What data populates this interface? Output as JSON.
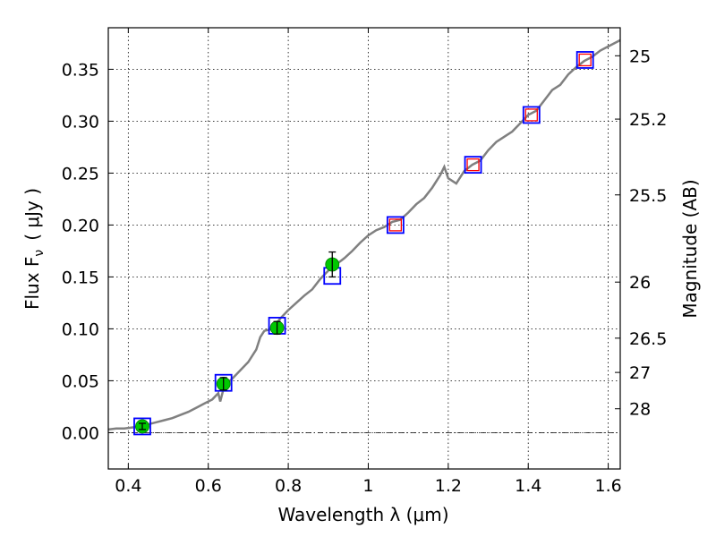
{
  "chart_data": {
    "type": "scatter",
    "xlabel": "Wavelength  λ (μm)",
    "ylabel": "Flux  F",
    "ylabel_sub": "ν",
    "ylabel_unit": "( μJy )",
    "y2label": "Magnitude (AB)",
    "xlim": [
      0.35,
      1.63
    ],
    "ylim": [
      -0.035,
      0.39
    ],
    "grid": true,
    "x_ticks": [
      0.4,
      0.6,
      0.8,
      1.0,
      1.2,
      1.4,
      1.6
    ],
    "x_tick_labels": [
      "0.4",
      "0.6",
      "0.8",
      "1",
      "1.2",
      "1.4",
      "1.6"
    ],
    "y_ticks": [
      0.0,
      0.05,
      0.1,
      0.15,
      0.2,
      0.25,
      0.3,
      0.35
    ],
    "y_tick_labels": [
      "0.00",
      "0.05",
      "0.10",
      "0.15",
      "0.20",
      "0.25",
      "0.30",
      "0.35"
    ],
    "y2_ticks": [
      {
        "label": "25",
        "flux": 0.363
      },
      {
        "label": "25.2",
        "flux": 0.302
      },
      {
        "label": "25.5",
        "flux": 0.229
      },
      {
        "label": "26",
        "flux": 0.145
      },
      {
        "label": "26.5",
        "flux": 0.091
      },
      {
        "label": "27",
        "flux": 0.058
      },
      {
        "label": "28",
        "flux": 0.023
      }
    ],
    "series": [
      {
        "kind": "line",
        "color": "#808080",
        "x": [
          0.35,
          0.37,
          0.39,
          0.41,
          0.43,
          0.45,
          0.47,
          0.49,
          0.51,
          0.53,
          0.55,
          0.57,
          0.59,
          0.61,
          0.625,
          0.63,
          0.64,
          0.66,
          0.68,
          0.7,
          0.72,
          0.73,
          0.74,
          0.76,
          0.78,
          0.8,
          0.82,
          0.84,
          0.86,
          0.88,
          0.9,
          0.92,
          0.94,
          0.96,
          0.98,
          1.0,
          1.02,
          1.04,
          1.06,
          1.08,
          1.1,
          1.12,
          1.14,
          1.16,
          1.18,
          1.19,
          1.2,
          1.22,
          1.24,
          1.26,
          1.28,
          1.3,
          1.32,
          1.34,
          1.36,
          1.38,
          1.4,
          1.42,
          1.44,
          1.46,
          1.48,
          1.5,
          1.52,
          1.54,
          1.56,
          1.58,
          1.6,
          1.63
        ],
        "y": [
          0.003,
          0.004,
          0.004,
          0.005,
          0.006,
          0.008,
          0.01,
          0.012,
          0.014,
          0.017,
          0.02,
          0.024,
          0.028,
          0.032,
          0.038,
          0.03,
          0.045,
          0.052,
          0.06,
          0.068,
          0.08,
          0.092,
          0.098,
          0.1,
          0.11,
          0.118,
          0.125,
          0.132,
          0.138,
          0.148,
          0.156,
          0.162,
          0.168,
          0.175,
          0.183,
          0.19,
          0.195,
          0.198,
          0.203,
          0.205,
          0.212,
          0.22,
          0.226,
          0.236,
          0.248,
          0.256,
          0.245,
          0.24,
          0.252,
          0.258,
          0.262,
          0.272,
          0.28,
          0.285,
          0.29,
          0.298,
          0.306,
          0.31,
          0.32,
          0.33,
          0.335,
          0.345,
          0.352,
          0.358,
          0.362,
          0.368,
          0.372,
          0.378
        ]
      },
      {
        "kind": "open-square",
        "color": "#0000ff",
        "x": [
          0.435,
          0.638,
          0.772,
          0.91,
          1.068,
          1.262,
          1.408,
          1.542
        ],
        "y": [
          0.006,
          0.048,
          0.103,
          0.151,
          0.2,
          0.258,
          0.306,
          0.359
        ]
      },
      {
        "kind": "open-square",
        "color": "#ff0000",
        "x": [
          1.068,
          1.262,
          1.408,
          1.542
        ],
        "y": [
          0.2,
          0.258,
          0.306,
          0.359
        ]
      },
      {
        "kind": "filled-circle",
        "color": "#00c800",
        "x": [
          0.435,
          0.638,
          0.772,
          0.91
        ],
        "y": [
          0.006,
          0.047,
          0.101,
          0.162
        ],
        "yerr": [
          0.003,
          0.006,
          0.006,
          0.012
        ]
      }
    ]
  }
}
